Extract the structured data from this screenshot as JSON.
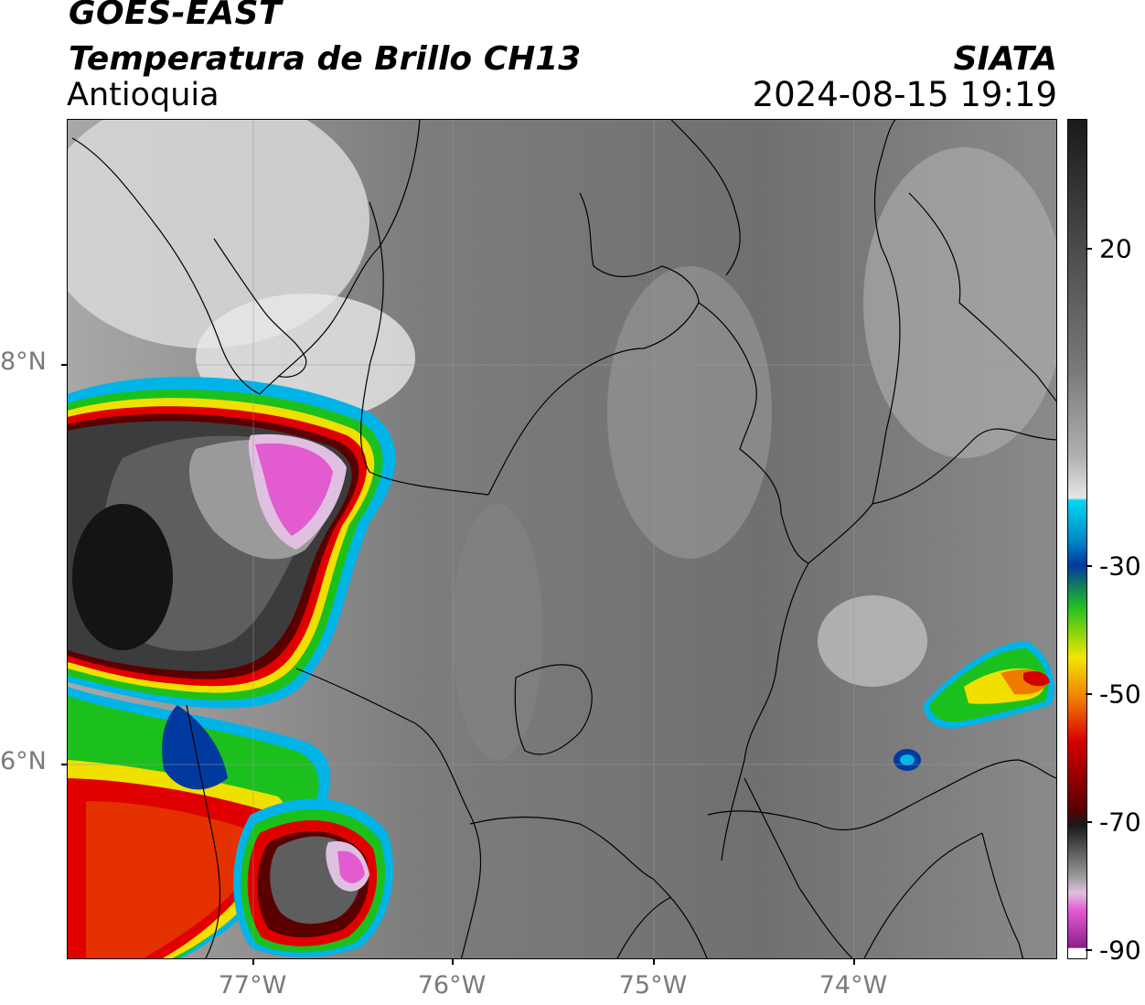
{
  "header": {
    "satellite": "GOES-EAST",
    "product": "Temperatura de Brillo CH13",
    "region": "Antioquia",
    "agency": "SIATA",
    "datetime": "2024-08-15 19:19"
  },
  "map": {
    "lat_labels": [
      "8°N",
      "6°N"
    ],
    "lon_labels": [
      "77°W",
      "76°W",
      "75°W",
      "74°W"
    ]
  },
  "colorbar": {
    "tick_labels": [
      "20",
      "-30",
      "-50",
      "-70",
      "-90"
    ],
    "colors": {
      "warm_dark": "#1a1a1a",
      "mid_gray": "#6f6f6f",
      "light_gray": "#e6e6e6",
      "cyan": "#00d8f0",
      "blue": "#003a9e",
      "green": "#22c022",
      "yellow": "#f2e600",
      "orange": "#f07a00",
      "red": "#d40000",
      "dark_red": "#5a0000",
      "magenta": "#e45cd2",
      "purple": "#8a1e8a"
    }
  }
}
